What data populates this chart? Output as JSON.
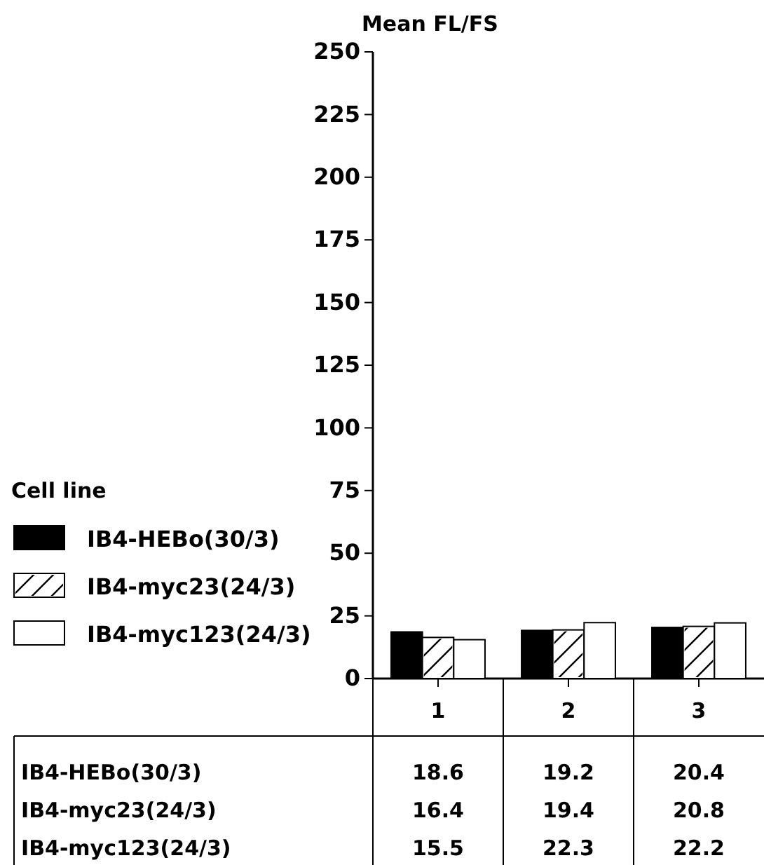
{
  "chart_data": {
    "type": "bar",
    "ylabel": "Mean FL/FS",
    "legend_title": "Cell line",
    "categories": [
      "1",
      "2",
      "3"
    ],
    "series": [
      {
        "name": "IB4-HEBo(30/3)",
        "color": "#000000",
        "values": [
          18.6,
          19.2,
          20.4
        ]
      },
      {
        "name": "IB4-myc23(24/3)",
        "color": "#ffffff",
        "values": [
          16.4,
          19.4,
          20.8
        ]
      },
      {
        "name": "IB4-myc123(24/3)",
        "color": "#ffffff",
        "values": [
          15.5,
          22.3,
          22.2
        ]
      }
    ],
    "ylim": [
      0,
      250
    ],
    "yticks": [
      0,
      25,
      50,
      75,
      100,
      125,
      150,
      175,
      200,
      225,
      250
    ],
    "legend": "left",
    "data_labels": true
  }
}
